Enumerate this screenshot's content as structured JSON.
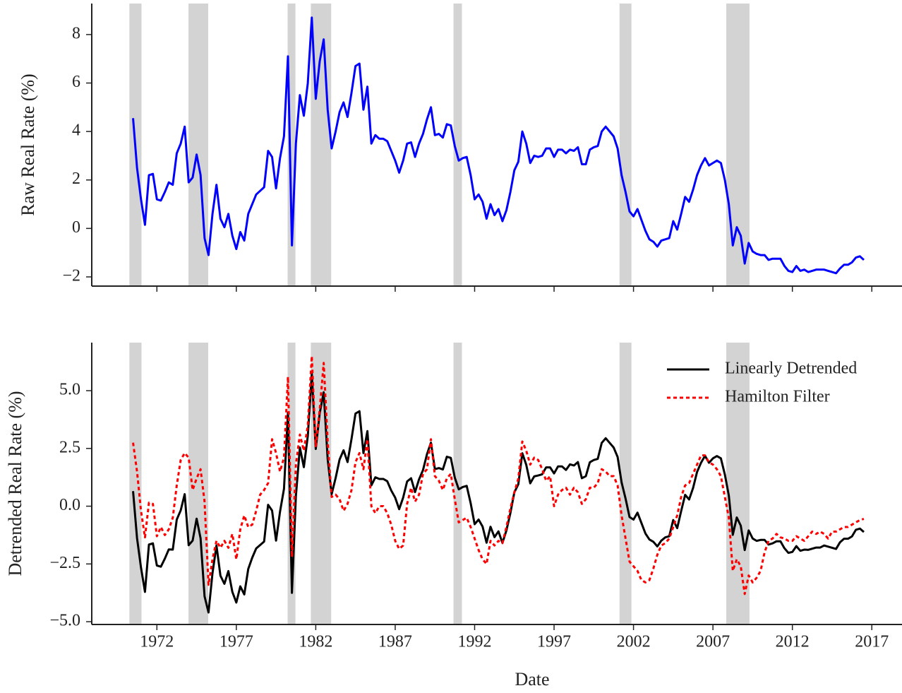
{
  "chart_data": [
    {
      "type": "line",
      "ylabel": "Raw Real Rate (%)",
      "xlim": [
        1967.9,
        2018.9
      ],
      "xticks": [
        1972,
        1977,
        1982,
        1987,
        1992,
        1997,
        2002,
        2007,
        2012,
        2017
      ],
      "ylim": [
        -2.38,
        9.28
      ],
      "yticks": [
        {
          "value": -2,
          "label": "−2"
        },
        0,
        2,
        4,
        6,
        8
      ],
      "shading": [
        [
          1970.27,
          1971.03
        ],
        [
          1973.99,
          1975.23
        ],
        [
          1980.23,
          1980.72
        ],
        [
          1981.69,
          1982.97
        ],
        [
          1990.67,
          1991.2
        ],
        [
          2001.12,
          2001.87
        ],
        [
          2007.84,
          2009.3
        ]
      ],
      "shading_color": "#d3d3d3",
      "x": [
        1970.5,
        1970.75,
        1971,
        1971.25,
        1971.5,
        1971.75,
        1972,
        1972.25,
        1972.5,
        1972.75,
        1973,
        1973.25,
        1973.5,
        1973.75,
        1974,
        1974.25,
        1974.5,
        1974.75,
        1975,
        1975.25,
        1975.5,
        1975.75,
        1976,
        1976.25,
        1976.5,
        1976.75,
        1977,
        1977.25,
        1977.5,
        1977.75,
        1978,
        1978.25,
        1978.5,
        1978.75,
        1979,
        1979.25,
        1979.5,
        1979.75,
        1980,
        1980.25,
        1980.5,
        1980.75,
        1981,
        1981.25,
        1981.5,
        1981.75,
        1982,
        1982.25,
        1982.5,
        1982.75,
        1983,
        1983.25,
        1983.5,
        1983.75,
        1984,
        1984.25,
        1984.5,
        1984.75,
        1985,
        1985.25,
        1985.5,
        1985.75,
        1986,
        1986.25,
        1986.5,
        1986.75,
        1987,
        1987.25,
        1987.5,
        1987.75,
        1988,
        1988.25,
        1988.5,
        1988.75,
        1989,
        1989.25,
        1989.5,
        1989.75,
        1990,
        1990.25,
        1990.5,
        1990.75,
        1991,
        1991.25,
        1991.5,
        1991.75,
        1992,
        1992.25,
        1992.5,
        1992.75,
        1993,
        1993.25,
        1993.5,
        1993.75,
        1994,
        1994.25,
        1994.5,
        1994.75,
        1995,
        1995.25,
        1995.5,
        1995.75,
        1996,
        1996.25,
        1996.5,
        1996.75,
        1997,
        1997.25,
        1997.5,
        1997.75,
        1998,
        1998.25,
        1998.5,
        1998.75,
        1999,
        1999.25,
        1999.5,
        1999.75,
        2000,
        2000.25,
        2000.5,
        2000.75,
        2001,
        2001.25,
        2001.5,
        2001.75,
        2002,
        2002.25,
        2002.5,
        2002.75,
        2003,
        2003.25,
        2003.5,
        2003.75,
        2004,
        2004.25,
        2004.5,
        2004.75,
        2005,
        2005.25,
        2005.5,
        2005.75,
        2006,
        2006.25,
        2006.5,
        2006.75,
        2007,
        2007.25,
        2007.5,
        2007.75,
        2008,
        2008.25,
        2008.5,
        2008.75,
        2009,
        2009.25,
        2009.5,
        2009.75,
        2010,
        2010.25,
        2010.5,
        2010.75,
        2011,
        2011.25,
        2011.5,
        2011.75,
        2012,
        2012.25,
        2012.5,
        2012.75,
        2013,
        2013.25,
        2013.5,
        2013.75,
        2014,
        2014.25,
        2014.5,
        2014.75,
        2015,
        2015.25,
        2015.5,
        2015.75,
        2016,
        2016.25,
        2016.5
      ],
      "color": "#0000ff",
      "values": [
        4.55,
        2.5,
        1.2,
        0.15,
        2.2,
        2.25,
        1.2,
        1.15,
        1.5,
        1.9,
        1.8,
        3.1,
        3.5,
        4.2,
        1.9,
        2.1,
        3.05,
        2.2,
        -0.4,
        -1.1,
        0.6,
        1.8,
        0.4,
        0.05,
        0.6,
        -0.3,
        -0.85,
        -0.15,
        -0.5,
        0.6,
        1.0,
        1.4,
        1.55,
        1.7,
        3.2,
        2.95,
        1.65,
        2.9,
        3.8,
        7.1,
        -0.7,
        3.5,
        5.5,
        4.65,
        6.0,
        8.7,
        5.35,
        6.9,
        7.8,
        4.9,
        3.3,
        4.0,
        4.8,
        5.2,
        4.6,
        5.6,
        6.7,
        6.8,
        4.9,
        5.85,
        3.5,
        3.85,
        3.7,
        3.7,
        3.6,
        3.2,
        2.8,
        2.3,
        2.8,
        3.5,
        3.55,
        2.95,
        3.5,
        3.9,
        4.5,
        5.0,
        3.85,
        3.9,
        3.75,
        4.3,
        4.25,
        3.4,
        2.8,
        2.9,
        2.95,
        2.2,
        1.2,
        1.4,
        1.1,
        0.4,
        1.0,
        0.55,
        0.8,
        0.3,
        0.75,
        1.5,
        2.4,
        2.75,
        4.0,
        3.5,
        2.7,
        3.0,
        2.95,
        3.0,
        3.3,
        3.3,
        2.95,
        3.25,
        3.25,
        3.1,
        3.25,
        3.2,
        3.35,
        2.65,
        2.65,
        3.25,
        3.35,
        3.4,
        4.0,
        4.2,
        4.0,
        3.8,
        3.3,
        2.2,
        1.5,
        0.7,
        0.5,
        0.8,
        0.35,
        -0.1,
        -0.45,
        -0.55,
        -0.75,
        -0.5,
        -0.45,
        -0.4,
        0.3,
        -0.05,
        0.6,
        1.3,
        1.1,
        1.6,
        2.2,
        2.6,
        2.9,
        2.6,
        2.7,
        2.8,
        2.7,
        2.0,
        1.0,
        -0.7,
        0.05,
        -0.3,
        -1.45,
        -0.6,
        -0.95,
        -1.05,
        -1.1,
        -1.1,
        -1.3,
        -1.25,
        -1.25,
        -1.25,
        -1.55,
        -1.75,
        -1.8,
        -1.55,
        -1.75,
        -1.7,
        -1.8,
        -1.75,
        -1.7,
        -1.7,
        -1.7,
        -1.75,
        -1.8,
        -1.85,
        -1.65,
        -1.5,
        -1.5,
        -1.4,
        -1.2,
        -1.15,
        -1.3
      ]
    },
    {
      "type": "line",
      "ylabel": "Detrended Real Rate (%)",
      "xlabel": "Date",
      "xlim": [
        1967.9,
        2018.9
      ],
      "xticks": [
        1972,
        1977,
        1982,
        1987,
        1992,
        1997,
        2002,
        2007,
        2012,
        2017
      ],
      "ylim": [
        -5.12,
        7.08
      ],
      "yticks": [
        {
          "value": -5,
          "label": "−5.0"
        },
        {
          "value": -2.5,
          "label": "−2.5"
        },
        {
          "value": 0,
          "label": "0.0"
        },
        2.5,
        {
          "value": 5,
          "label": "5.0"
        }
      ],
      "shading": [
        [
          1970.27,
          1971.03
        ],
        [
          1973.99,
          1975.23
        ],
        [
          1980.23,
          1980.72
        ],
        [
          1981.69,
          1982.97
        ],
        [
          1990.67,
          1991.2
        ],
        [
          2001.12,
          2001.87
        ],
        [
          2007.84,
          2009.3
        ]
      ],
      "shading_color": "#d3d3d3",
      "legend": "upper right",
      "x": [
        1970.5,
        1970.75,
        1971,
        1971.25,
        1971.5,
        1971.75,
        1972,
        1972.25,
        1972.5,
        1972.75,
        1973,
        1973.25,
        1973.5,
        1973.75,
        1974,
        1974.25,
        1974.5,
        1974.75,
        1975,
        1975.25,
        1975.5,
        1975.75,
        1976,
        1976.25,
        1976.5,
        1976.75,
        1977,
        1977.25,
        1977.5,
        1977.75,
        1978,
        1978.25,
        1978.5,
        1978.75,
        1979,
        1979.25,
        1979.5,
        1979.75,
        1980,
        1980.25,
        1980.5,
        1980.75,
        1981,
        1981.25,
        1981.5,
        1981.75,
        1982,
        1982.25,
        1982.5,
        1982.75,
        1983,
        1983.25,
        1983.5,
        1983.75,
        1984,
        1984.25,
        1984.5,
        1984.75,
        1985,
        1985.25,
        1985.5,
        1985.75,
        1986,
        1986.25,
        1986.5,
        1986.75,
        1987,
        1987.25,
        1987.5,
        1987.75,
        1988,
        1988.25,
        1988.5,
        1988.75,
        1989,
        1989.25,
        1989.5,
        1989.75,
        1990,
        1990.25,
        1990.5,
        1990.75,
        1991,
        1991.25,
        1991.5,
        1991.75,
        1992,
        1992.25,
        1992.5,
        1992.75,
        1993,
        1993.25,
        1993.5,
        1993.75,
        1994,
        1994.25,
        1994.5,
        1994.75,
        1995,
        1995.25,
        1995.5,
        1995.75,
        1996,
        1996.25,
        1996.5,
        1996.75,
        1997,
        1997.25,
        1997.5,
        1997.75,
        1998,
        1998.25,
        1998.5,
        1998.75,
        1999,
        1999.25,
        1999.5,
        1999.75,
        2000,
        2000.25,
        2000.5,
        2000.75,
        2001,
        2001.25,
        2001.5,
        2001.75,
        2002,
        2002.25,
        2002.5,
        2002.75,
        2003,
        2003.25,
        2003.5,
        2003.75,
        2004,
        2004.25,
        2004.5,
        2004.75,
        2005,
        2005.25,
        2005.5,
        2005.75,
        2006,
        2006.25,
        2006.5,
        2006.75,
        2007,
        2007.25,
        2007.5,
        2007.75,
        2008,
        2008.25,
        2008.5,
        2008.75,
        2009,
        2009.25,
        2009.5,
        2009.75,
        2010,
        2010.25,
        2010.5,
        2010.75,
        2011,
        2011.25,
        2011.5,
        2011.75,
        2012,
        2012.25,
        2012.5,
        2012.75,
        2013,
        2013.25,
        2013.5,
        2013.75,
        2014,
        2014.25,
        2014.5,
        2014.75,
        2015,
        2015.25,
        2015.5,
        2015.75,
        2016,
        2016.25,
        2016.5
      ],
      "series": [
        {
          "name": "Linearly Detrended",
          "color": "#000000",
          "linestyle": "solid",
          "values": [
            0.65,
            -1.38,
            -2.66,
            -3.71,
            -1.66,
            -1.61,
            -2.57,
            -2.62,
            -2.27,
            -1.87,
            -1.88,
            -0.58,
            -0.18,
            0.52,
            -1.69,
            -1.49,
            -0.54,
            -1.39,
            -3.9,
            -4.6,
            -2.9,
            -1.7,
            -3.01,
            -3.36,
            -2.81,
            -3.71,
            -4.17,
            -3.47,
            -3.82,
            -2.72,
            -2.23,
            -1.83,
            -1.68,
            -1.53,
            0.06,
            -0.19,
            -1.49,
            -0.24,
            0.75,
            4.05,
            -3.75,
            0.45,
            2.54,
            1.69,
            3.04,
            5.74,
            2.48,
            4.03,
            4.93,
            2.03,
            0.52,
            1.22,
            2.02,
            2.42,
            1.91,
            2.91,
            4.01,
            4.11,
            2.3,
            3.25,
            0.9,
            1.25,
            1.18,
            1.18,
            1.08,
            0.68,
            0.37,
            -0.13,
            0.37,
            1.07,
            1.21,
            0.61,
            1.16,
            1.56,
            2.25,
            2.75,
            1.6,
            1.65,
            1.59,
            2.14,
            2.09,
            1.24,
            0.73,
            0.83,
            0.88,
            0.13,
            -0.78,
            -0.58,
            -0.88,
            -1.58,
            -0.89,
            -1.34,
            -1.09,
            -1.59,
            -1.05,
            -0.3,
            0.6,
            0.95,
            2.29,
            1.79,
            0.99,
            1.29,
            1.33,
            1.38,
            1.68,
            1.68,
            1.42,
            1.72,
            1.72,
            1.57,
            1.81,
            1.76,
            1.91,
            1.21,
            1.3,
            1.9,
            2.0,
            2.05,
            2.74,
            2.94,
            2.74,
            2.54,
            2.13,
            1.03,
            0.33,
            -0.47,
            -0.58,
            -0.28,
            -0.73,
            -1.18,
            -1.44,
            -1.54,
            -1.74,
            -1.49,
            -1.35,
            -1.3,
            -0.6,
            -0.95,
            -0.21,
            0.49,
            0.29,
            0.79,
            1.48,
            1.88,
            2.18,
            1.88,
            2.07,
            2.17,
            2.07,
            1.37,
            0.46,
            -1.24,
            -0.49,
            -0.84,
            -1.9,
            -1.05,
            -1.4,
            -1.5,
            -1.46,
            -1.46,
            -1.66,
            -1.61,
            -1.52,
            -1.52,
            -1.82,
            -2.02,
            -1.98,
            -1.73,
            -1.93,
            -1.88,
            -1.89,
            -1.84,
            -1.79,
            -1.79,
            -1.7,
            -1.75,
            -1.8,
            -1.85,
            -1.56,
            -1.41,
            -1.41,
            -1.31,
            -1.02,
            -0.97,
            -1.12
          ]
        },
        {
          "name": "Hamilton Filter",
          "color": "#ff0000",
          "linestyle": "dotted",
          "values": [
            2.75,
            1.5,
            -0.2,
            -1.35,
            0.15,
            0.1,
            -1.3,
            -0.9,
            -1.25,
            -1.0,
            -0.5,
            0.9,
            2.0,
            2.3,
            2.1,
            0.7,
            1.2,
            1.6,
            0.2,
            -3.4,
            -2.3,
            -1.5,
            -1.8,
            -1.5,
            -1.8,
            -1.2,
            -2.3,
            -1.0,
            -0.4,
            -0.9,
            -0.8,
            -0.2,
            0.5,
            0.7,
            1.0,
            2.9,
            2.3,
            1.5,
            2.1,
            5.6,
            -2.2,
            1.8,
            3.1,
            2.4,
            3.5,
            6.5,
            2.6,
            4.2,
            6.2,
            2.8,
            0.4,
            0.5,
            0.3,
            -0.2,
            0.1,
            0.7,
            1.9,
            2.3,
            1.6,
            2.9,
            0.0,
            -0.3,
            0.0,
            0.0,
            -0.3,
            -0.8,
            -1.5,
            -1.85,
            -1.7,
            0.1,
            0.8,
            0.2,
            0.5,
            1.4,
            1.6,
            2.9,
            1.3,
            1.1,
            0.7,
            1.2,
            1.4,
            0.3,
            -0.7,
            -0.6,
            -0.5,
            -0.9,
            -1.4,
            -1.9,
            -2.3,
            -2.5,
            -1.5,
            -1.7,
            -1.5,
            -1.6,
            -0.9,
            -0.1,
            0.6,
            1.2,
            2.8,
            2.4,
            1.8,
            2.1,
            2.0,
            1.6,
            1.1,
            1.3,
            0.0,
            0.5,
            0.7,
            0.8,
            0.5,
            0.8,
            0.6,
            0.1,
            0.3,
            0.8,
            0.8,
            1.0,
            1.6,
            1.5,
            1.3,
            1.3,
            0.9,
            -0.4,
            -1.4,
            -2.4,
            -2.6,
            -2.8,
            -3.2,
            -3.3,
            -3.2,
            -2.7,
            -2.1,
            -1.7,
            -1.6,
            -1.4,
            -0.9,
            -0.4,
            0.4,
            0.9,
            1.0,
            1.4,
            1.8,
            2.2,
            2.2,
            1.9,
            1.8,
            1.6,
            1.3,
            0.4,
            -0.5,
            -2.8,
            -2.3,
            -2.6,
            -3.8,
            -3.0,
            -3.3,
            -3.1,
            -2.8,
            -2.0,
            -1.5,
            -1.4,
            -1.2,
            -1.35,
            -1.4,
            -1.5,
            -1.5,
            -1.3,
            -1.4,
            -1.5,
            -1.3,
            -1.1,
            -1.2,
            -1.1,
            -1.2,
            -1.4,
            -1.1,
            -1.1,
            -1.0,
            -0.9,
            -0.9,
            -0.8,
            -0.7,
            -0.6,
            -0.55
          ]
        }
      ]
    }
  ]
}
